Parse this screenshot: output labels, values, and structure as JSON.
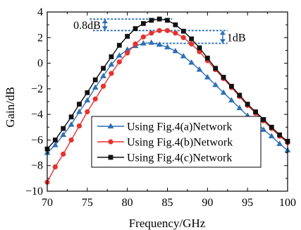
{
  "chart_data": {
    "type": "line",
    "xlabel": "Frequency/GHz",
    "ylabel": "Gain/dB",
    "xlim": [
      70,
      100
    ],
    "ylim": [
      -10,
      4
    ],
    "xticks": [
      70,
      75,
      80,
      85,
      90,
      95,
      100
    ],
    "yticks": [
      -10,
      -8,
      -6,
      -4,
      -2,
      0,
      2,
      4
    ],
    "ytick_labels": [
      "−10",
      "−8",
      "−6",
      "−4",
      "−2",
      "0",
      "2",
      "4"
    ],
    "grid": false,
    "legend_position": "lower-center",
    "x": [
      70,
      71,
      72,
      73,
      74,
      75,
      76,
      77,
      78,
      79,
      80,
      81,
      82,
      83,
      84,
      85,
      86,
      87,
      88,
      89,
      90,
      91,
      92,
      93,
      94,
      95,
      96,
      97,
      98,
      99,
      100
    ],
    "series": [
      {
        "name": "Using Fig.4(a)Network",
        "marker": "triangle",
        "color": "#2e6fb5",
        "values": [
          -7.0,
          -6.4,
          -5.6,
          -4.8,
          -3.8,
          -2.9,
          -1.9,
          -1.0,
          -0.1,
          0.6,
          1.05,
          1.35,
          1.55,
          1.6,
          1.45,
          1.25,
          0.95,
          0.55,
          0.05,
          -0.5,
          -1.1,
          -1.7,
          -2.3,
          -2.9,
          -3.5,
          -4.1,
          -4.6,
          -5.2,
          -5.7,
          -6.3,
          -6.8
        ]
      },
      {
        "name": "Using Fig.4(b)Network",
        "marker": "circle",
        "color": "#e8312c",
        "values": [
          -9.3,
          -8.1,
          -7.1,
          -6.0,
          -4.9,
          -3.8,
          -2.8,
          -1.8,
          -0.8,
          0.1,
          0.8,
          1.5,
          2.05,
          2.35,
          2.55,
          2.55,
          2.35,
          2.0,
          1.5,
          0.9,
          0.2,
          -0.5,
          -1.2,
          -1.9,
          -2.6,
          -3.3,
          -3.9,
          -4.5,
          -5.1,
          -5.7,
          -6.2
        ]
      },
      {
        "name": "Using Fig.4(c)Network",
        "marker": "square",
        "color": "#111111",
        "values": [
          -6.7,
          -6.0,
          -5.1,
          -4.2,
          -3.2,
          -2.3,
          -1.3,
          -0.4,
          0.5,
          1.4,
          2.1,
          2.7,
          3.1,
          3.35,
          3.45,
          3.35,
          3.0,
          2.5,
          1.9,
          1.2,
          0.4,
          -0.4,
          -1.1,
          -1.8,
          -2.5,
          -3.2,
          -3.8,
          -4.4,
          -5.0,
          -5.6,
          -6.1
        ]
      }
    ],
    "annotations": [
      {
        "text": "0.8dB",
        "between": [
          2.55,
          3.45
        ],
        "at_x": 77.2
      },
      {
        "text": "1dB",
        "between": [
          1.55,
          2.55
        ],
        "at_x": 91.9
      }
    ]
  }
}
